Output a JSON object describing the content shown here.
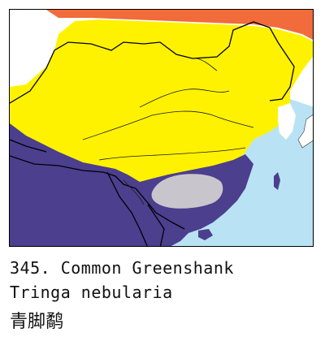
{
  "caption": {
    "number_and_common_name": "345. Common Greenshank",
    "scientific_name": "Tringa nebularia",
    "chinese_name": "青脚鹬"
  },
  "map": {
    "colors": {
      "sea": "#b9e3f4",
      "land_other": "#ffffff",
      "breeding_summer": "#f26b3a",
      "passage_migrant": "#fff200",
      "wintering": "#4b3f8e",
      "resident_gray": "#c9c5cc",
      "border": "#000000",
      "rivers": "#1a1a1a"
    },
    "range_zones": [
      "breeding-range-orange",
      "passage-range-yellow",
      "wintering-range-purple",
      "gray-area"
    ]
  }
}
